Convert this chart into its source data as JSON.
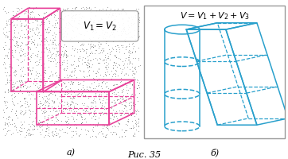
{
  "fig_width": 3.62,
  "fig_height": 2.01,
  "bg_color": "#ffffff",
  "pink_color": "#e8429a",
  "blue_color": "#29a0cc",
  "label_a": "a)",
  "label_b": "б)",
  "caption": "Рис. 35",
  "formula_a": "$V_1 = V_2$",
  "formula_b": "$V = V_1 + V_2 + V_3$"
}
